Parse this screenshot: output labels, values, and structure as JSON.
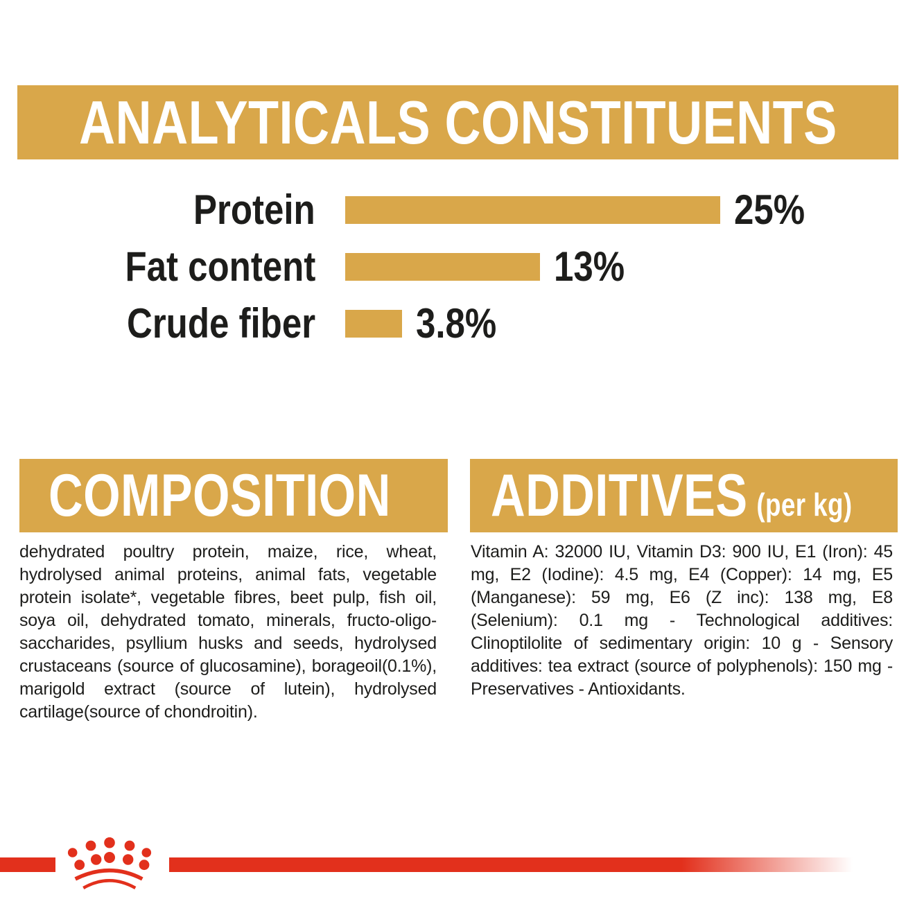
{
  "colors": {
    "gold": "#D9A74A",
    "red": "#E2301C",
    "ink": "#1d1d1b",
    "background": "#ffffff"
  },
  "analyticals": {
    "title": "ANALYTICALS CONSTITUENTS"
  },
  "chart_data": {
    "type": "bar",
    "orientation": "horizontal",
    "title": "ANALYTICALS CONSTITUENTS",
    "categories": [
      "Protein",
      "Fat content",
      "Crude fiber"
    ],
    "values": [
      25,
      13,
      3.8
    ],
    "value_labels": [
      "25%",
      "13%",
      "3.8%"
    ],
    "unit": "%",
    "xlim": [
      0,
      25
    ],
    "bar_color": "#D9A74A",
    "label_color": "#1d1d1b",
    "grid": false,
    "legend": false
  },
  "composition": {
    "title": "COMPOSITION",
    "body": "dehydrated poultry protein, maize, rice, wheat, hydrolysed animal proteins, animal fats, vegetable protein isolate*, vegetable fibres, beet pulp, fish oil, soya oil, dehydrated tomato, minerals, fructo-oligo-saccharides, psyllium husks and seeds, hydrolysed crustaceans (source of glucosamine), borageoil(0.1%), marigold extract (source of lutein), hydrolysed cartilage(source of chondroitin)."
  },
  "additives": {
    "title": "ADDITIVES",
    "title_suffix": "(per kg)",
    "body": "Vitamin A: 32000 IU, Vitamin D3: 900 IU, E1 (Iron): 45 mg, E2 (Iodine): 4.5 mg, E4 (Copper): 14 mg, E5 (Manganese): 59 mg, E6 (Z inc): 138 mg, E8 (Selenium): 0.1 mg - Technological additives: Clinoptilolite of sedimentary origin: 10 g - Sensory additives: tea extract (source of polyphenols): 150 mg - Preservatives - Antioxidants."
  },
  "footer": {
    "logo": "royal-canin-crown"
  }
}
